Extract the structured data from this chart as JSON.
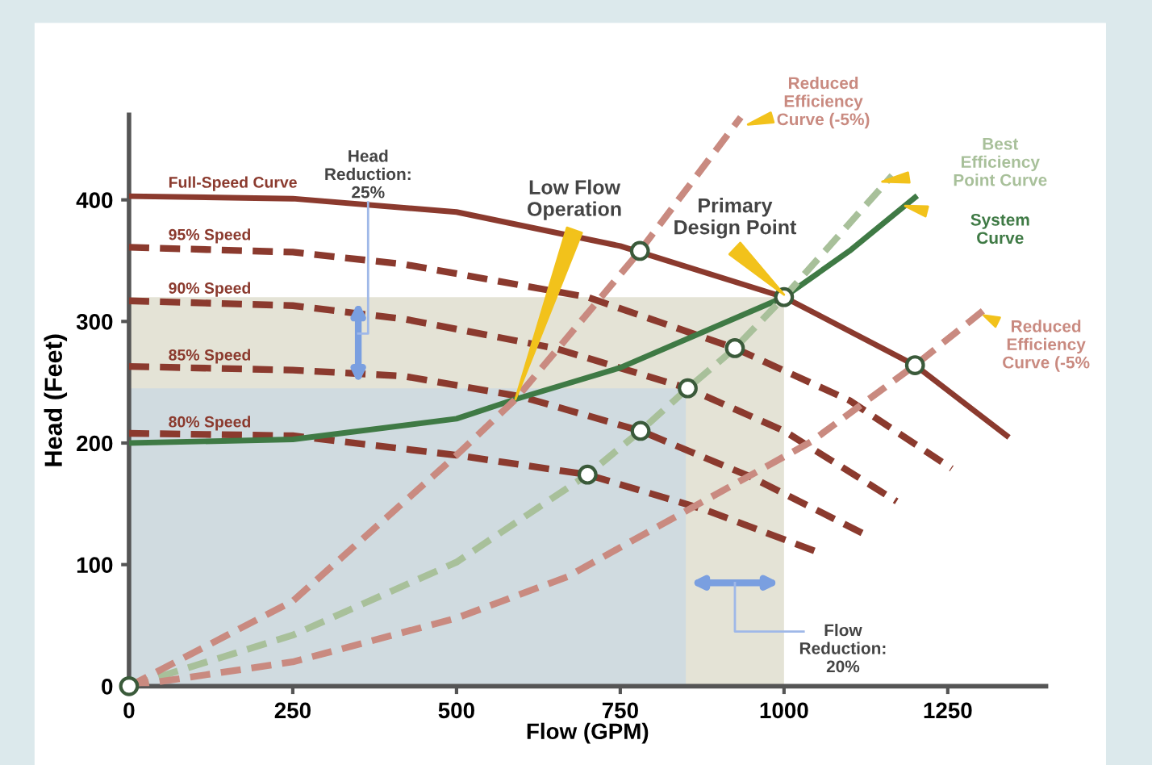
{
  "chart_data": {
    "type": "line",
    "xlabel": "Flow (GPM)",
    "ylabel": "Head (Feet)",
    "xlim": [
      0,
      1400
    ],
    "ylim": [
      0,
      470
    ],
    "xticks": [
      0,
      250,
      500,
      750,
      1000,
      1250
    ],
    "yticks": [
      0,
      100,
      200,
      300,
      400
    ],
    "grid": false,
    "legend": false,
    "series": [
      {
        "type": "area",
        "color": "#e4e3d6",
        "x": [
          0,
          1000
        ],
        "values": [
          320,
          320
        ]
      },
      {
        "type": "area",
        "color": "#d0dbe0",
        "x": [
          0,
          850
        ],
        "values": [
          245,
          245
        ]
      },
      {
        "name": "Full-Speed Curve",
        "color": "#8b3a2e",
        "line_style": "solid",
        "x": [
          0,
          250,
          500,
          750,
          1000,
          1200,
          1340
        ],
        "values": [
          403,
          401,
          390,
          362,
          320,
          264,
          206
        ]
      },
      {
        "name": "95% Speed",
        "color": "#8b3a2e",
        "line_style": "dashed",
        "x": [
          0,
          250,
          420,
          700,
          925,
          1100,
          1256
        ],
        "values": [
          361,
          357,
          347,
          320,
          278,
          235,
          179
        ]
      },
      {
        "name": "90% Speed",
        "color": "#8b3a2e",
        "line_style": "dashed",
        "x": [
          0,
          250,
          420,
          650,
          853,
          1000,
          1172
        ],
        "values": [
          317,
          313,
          302,
          278,
          245,
          210,
          152
        ]
      },
      {
        "name": "85% Speed",
        "color": "#8b3a2e",
        "line_style": "dashed",
        "x": [
          0,
          250,
          420,
          600,
          781,
          950,
          1123
        ],
        "values": [
          263,
          260,
          255,
          238,
          210,
          172,
          125
        ]
      },
      {
        "name": "80% Speed",
        "color": "#8b3a2e",
        "line_style": "dashed",
        "x": [
          0,
          250,
          500,
          700,
          880,
          1053
        ],
        "values": [
          208,
          206,
          190,
          174,
          145,
          110
        ]
      },
      {
        "name": "System\nCurve",
        "color": "#3f7a45",
        "line_style": "solid",
        "x": [
          0,
          250,
          500,
          590,
          750,
          1000,
          1100,
          1200
        ],
        "values": [
          200,
          203,
          220,
          236,
          262,
          320,
          358,
          402
        ]
      },
      {
        "name": "Best\nEfficiency\nPoint Curve",
        "color": "#a8c09a",
        "line_style": "dashed",
        "x": [
          0,
          250,
          500,
          700,
          781,
          853,
          925,
          1000,
          1165
        ],
        "values": [
          0,
          42,
          102,
          174,
          210,
          245,
          278,
          320,
          420
        ]
      },
      {
        "name": "Reduced\nEfficiency\nCurve (-5%)",
        "color": "#c98a80",
        "line_style": "dashed",
        "x": [
          0,
          250,
          500,
          590,
          780,
          934
        ],
        "values": [
          0,
          70,
          190,
          236,
          358,
          468
        ]
      },
      {
        "name": "Reduced\nEfficiency\nCurve (-5%",
        "color": "#c98a80",
        "line_style": "dashed",
        "x": [
          0,
          250,
          500,
          669,
          1041,
          1200,
          1309
        ],
        "values": [
          0,
          20,
          56,
          90,
          201,
          264,
          311
        ]
      },
      {
        "type": "scatter",
        "marker": "circle",
        "color": "#ffffff",
        "x": [
          0,
          700,
          781,
          853,
          925,
          1000,
          780,
          1200
        ],
        "values": [
          0,
          174,
          210,
          245,
          278,
          320,
          358,
          264
        ]
      }
    ],
    "annotations": [
      "Head\nReduction:\n25%",
      "Low Flow\nOperation",
      "Primary\nDesign Point",
      "Flow\nReduction:\n20%"
    ]
  }
}
